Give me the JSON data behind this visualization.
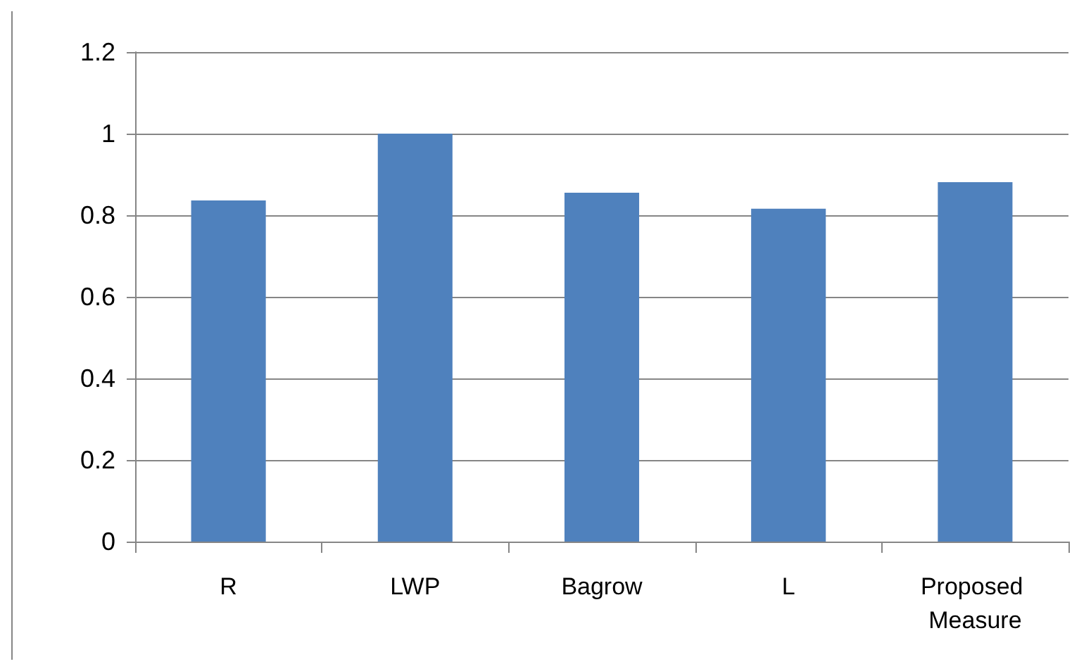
{
  "chart_data": {
    "type": "bar",
    "categories": [
      "R",
      "LWP",
      "Bagrow",
      "L",
      "Proposed Measure"
    ],
    "values": [
      0.836,
      1.0,
      0.855,
      0.816,
      0.881
    ],
    "color": "#4f81bd",
    "ylim": [
      0,
      1.2
    ],
    "yticks": [
      0,
      0.2,
      0.4,
      0.6,
      0.8,
      1,
      1.2
    ],
    "grid": "y"
  }
}
